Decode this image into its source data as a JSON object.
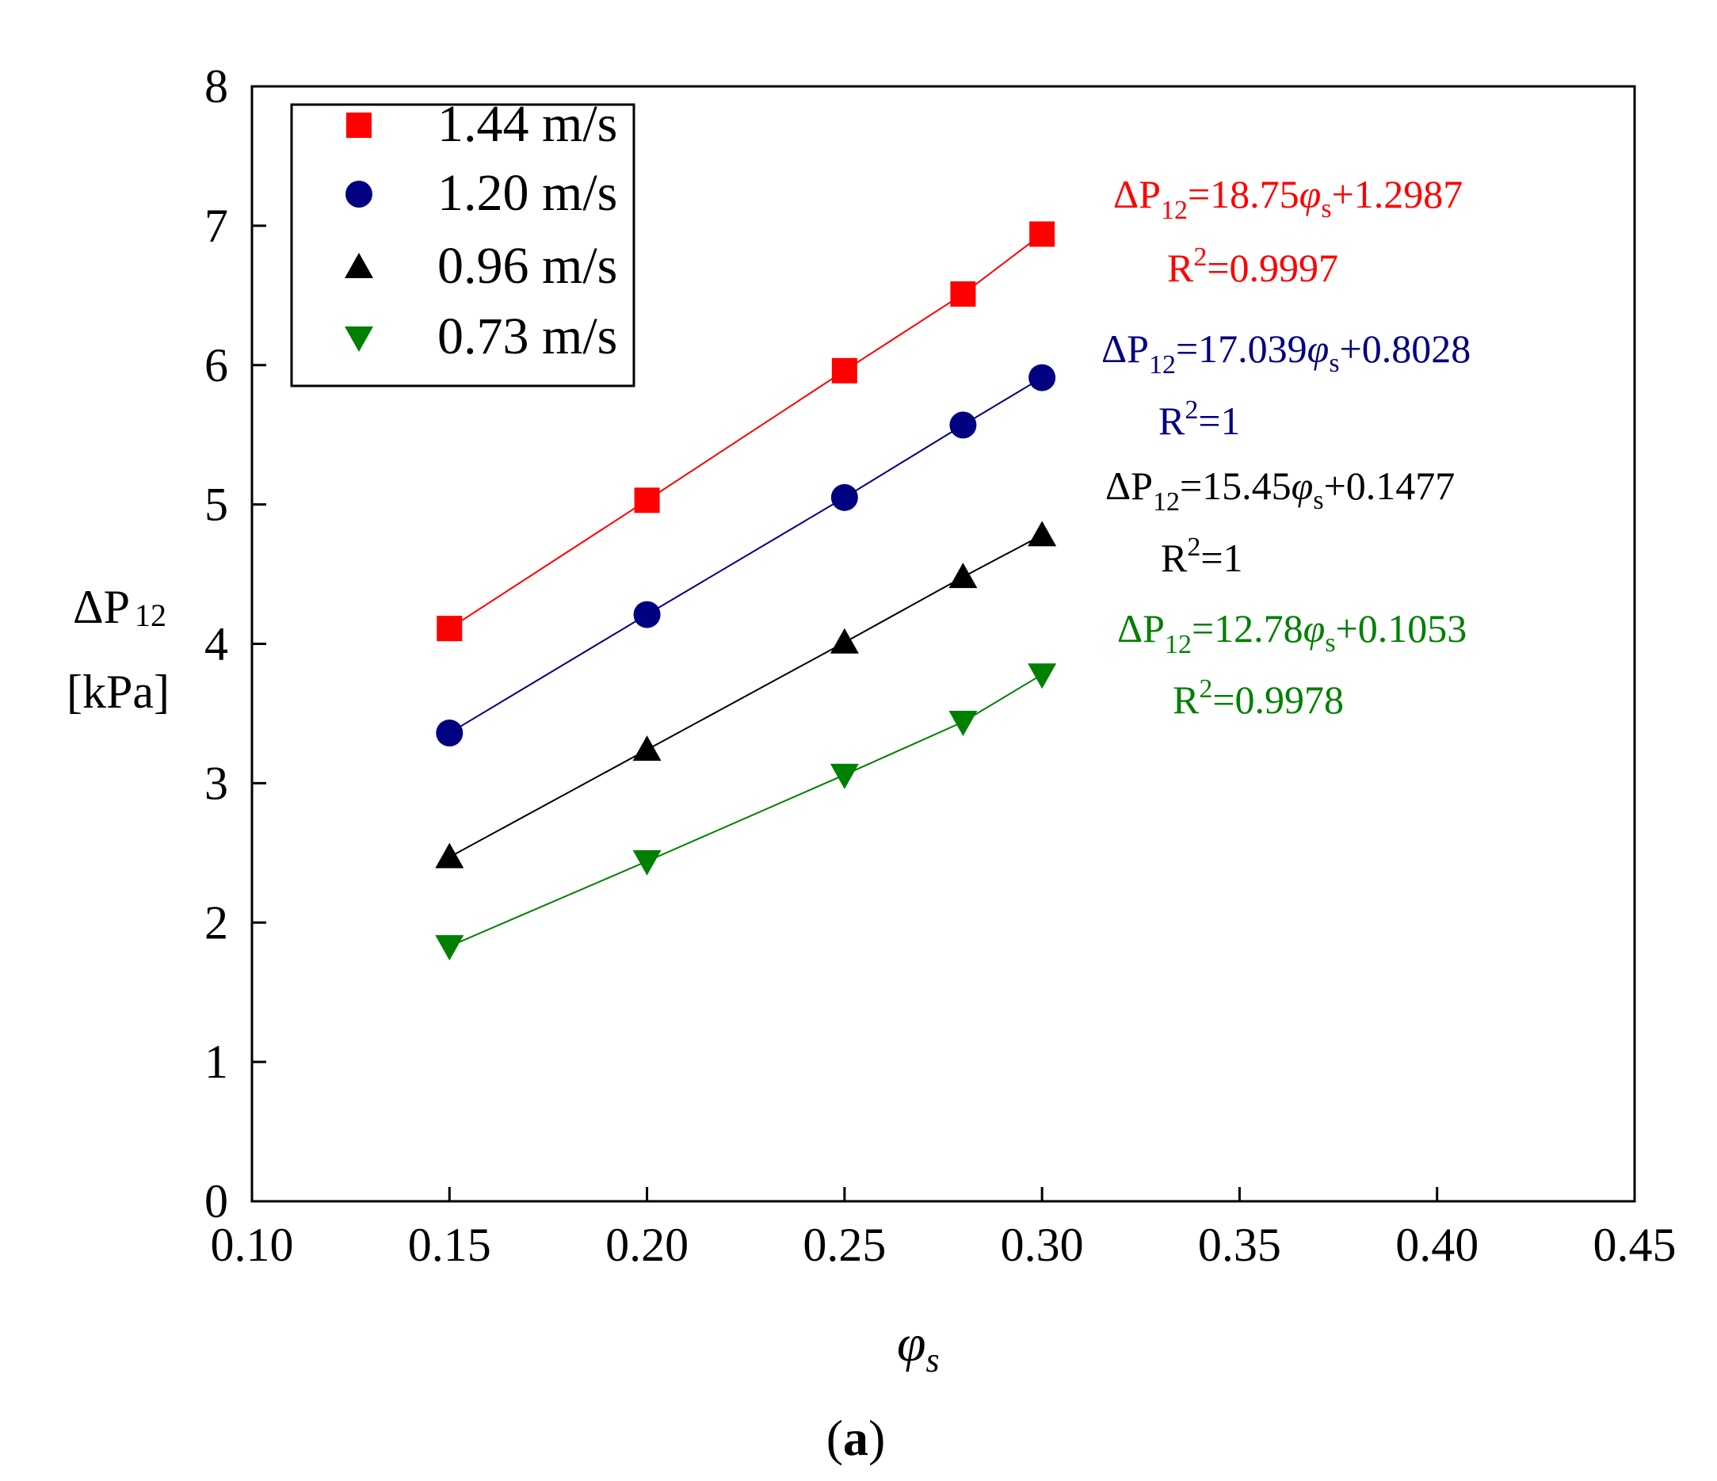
{
  "chart_data": {
    "type": "line",
    "title": "",
    "xlabel": "φs",
    "ylabel": "ΔP12",
    "ylabel_unit": "[kPa]",
    "xlim": [
      0.1,
      0.45
    ],
    "ylim": [
      0,
      8
    ],
    "xticks": [
      "0.10",
      "0.15",
      "0.20",
      "0.25",
      "0.30",
      "0.35",
      "0.40",
      "0.45"
    ],
    "yticks": [
      "0",
      "1",
      "2",
      "3",
      "4",
      "5",
      "6",
      "7",
      "8"
    ],
    "grid": false,
    "legend_position": "top-left",
    "x": [
      0.15,
      0.2,
      0.25,
      0.28,
      0.3
    ],
    "series": [
      {
        "name": "1.44 m/s",
        "color": "#ff0000",
        "marker": "square",
        "values": [
          4.11,
          5.03,
          5.96,
          6.51,
          6.94
        ],
        "fit": {
          "slope": 18.75,
          "intercept": 1.2987
        },
        "equation_parts": [
          "ΔP",
          "12",
          "=18.75",
          "φ",
          "s",
          "+1.2987"
        ],
        "r2_parts": [
          "R",
          "2",
          "=0.9997"
        ]
      },
      {
        "name": "1.20 m/s",
        "color": "#000080",
        "marker": "circle",
        "values": [
          3.36,
          4.21,
          5.05,
          5.57,
          5.91
        ],
        "fit": {
          "slope": 17.039,
          "intercept": 0.8028
        },
        "equation_parts": [
          "ΔP",
          "12",
          "=17.039",
          "φ",
          "s",
          "+0.8028"
        ],
        "r2_parts": [
          "R",
          "2",
          "=1"
        ]
      },
      {
        "name": "0.96 m/s",
        "color": "#000000",
        "marker": "triangle-up",
        "values": [
          2.47,
          3.24,
          4.01,
          4.48,
          4.78
        ],
        "fit": {
          "slope": 15.45,
          "intercept": 0.1477
        },
        "equation_parts": [
          "ΔP",
          "12",
          "=15.45",
          "φ",
          "s",
          "+0.1477"
        ],
        "r2_parts": [
          "R",
          "2",
          "=1"
        ]
      },
      {
        "name": "0.73 m/s",
        "color": "#008000",
        "marker": "triangle-down",
        "values": [
          1.83,
          2.44,
          3.06,
          3.44,
          3.78
        ],
        "fit": {
          "slope": 12.78,
          "intercept": 0.1053
        },
        "equation_parts": [
          "ΔP",
          "12",
          "=12.78",
          "φ",
          "s",
          "+0.1053"
        ],
        "r2_parts": [
          "R",
          "2",
          "=0.9978"
        ]
      }
    ]
  },
  "caption": {
    "open": "(",
    "letter": "a",
    "close": ")"
  }
}
